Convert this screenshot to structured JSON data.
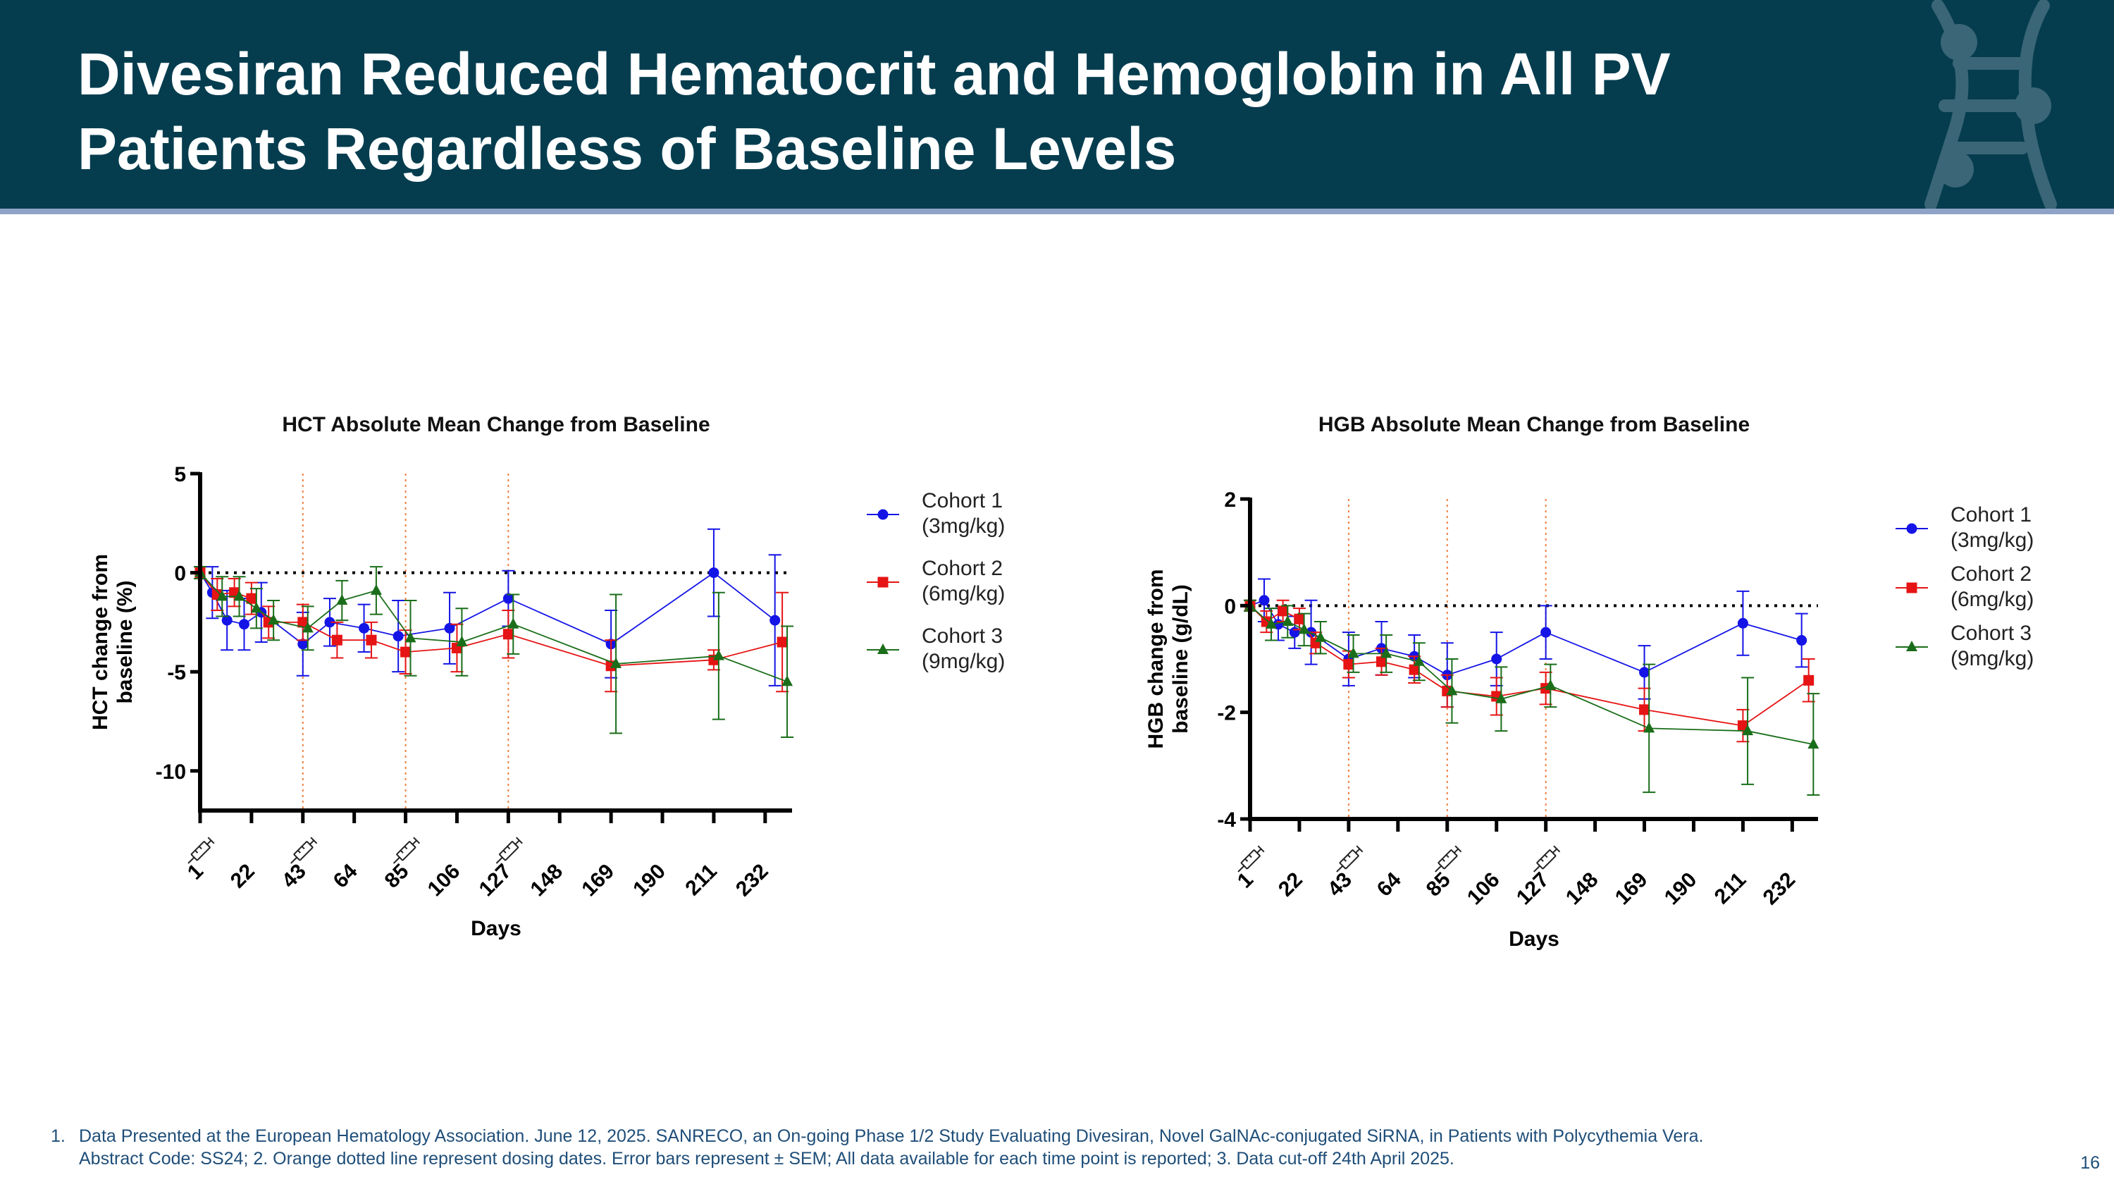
{
  "slide": {
    "title": "Divesiran Reduced Hematocrit and Hemoglobin in All PV Patients Regardless of Baseline Levels",
    "page_number": "16",
    "footnotes": [
      {
        "num": "1.",
        "text": "Data Presented at the European Hematology Association. June 12, 2025. SANRECO, an On-going Phase 1/2 Study Evaluating Divesiran, Novel GalNAc-conjugated SiRNA, in Patients with Polycythemia Vera."
      },
      {
        "num": "",
        "text": "Abstract Code: SS24; 2. Orange dotted line represent dosing dates. Error bars represent ± SEM; All data available for each time point is reported;  3. Data cut-off 24th April 2025."
      }
    ]
  },
  "colors": {
    "header_bg": "#053d4f",
    "stripe": "#8fa3c8",
    "cohort1": "#1414e6",
    "cohort2": "#e61414",
    "cohort3": "#1a6e1a",
    "dosing_line": "#f08040"
  },
  "chart_data": [
    {
      "type": "line",
      "title": "HCT Absolute Mean Change from Baseline",
      "xlabel": "Days",
      "ylabel": "HCT change from baseline (%)",
      "xlim": [
        1,
        243
      ],
      "ylim": [
        -12,
        5
      ],
      "yticks": [
        5,
        0,
        -5,
        -10
      ],
      "xticks": [
        1,
        22,
        43,
        64,
        85,
        106,
        127,
        148,
        169,
        190,
        211,
        232
      ],
      "dosing_days": [
        43,
        85,
        127
      ],
      "dose_icon_days": [
        1,
        43,
        85,
        127
      ],
      "reference_line": 0,
      "legend_position": "right",
      "series": [
        {
          "name": "Cohort 1\n(3mg/kg)",
          "marker": "circle",
          "color": "#1414e6",
          "x": [
            1,
            6,
            12,
            19,
            26,
            43,
            54,
            68,
            82,
            103,
            127,
            169,
            211,
            236
          ],
          "y": [
            0,
            -1,
            -2.4,
            -2.6,
            -2,
            -3.6,
            -2.5,
            -2.8,
            -3.2,
            -2.8,
            -1.3,
            -3.6,
            0,
            -2.4
          ],
          "err": [
            0.3,
            1.3,
            1.5,
            1.3,
            1.5,
            1.6,
            1.2,
            1.2,
            1.8,
            1.8,
            1.4,
            1.7,
            2.2,
            3.3
          ]
        },
        {
          "name": "Cohort 2\n(6mg/kg)",
          "marker": "square",
          "color": "#e61414",
          "x": [
            1,
            8,
            15,
            22,
            29,
            43,
            57,
            71,
            85,
            106,
            127,
            169,
            211,
            239
          ],
          "y": [
            0,
            -1.1,
            -1,
            -1.3,
            -2.5,
            -2.5,
            -3.4,
            -3.4,
            -4,
            -3.8,
            -3.1,
            -4.7,
            -4.4,
            -3.5
          ],
          "err": [
            0.3,
            0.8,
            0.7,
            0.8,
            0.8,
            0.9,
            0.9,
            0.9,
            1.1,
            1.2,
            1.2,
            1.3,
            0.5,
            2.5
          ]
        },
        {
          "name": "Cohort 3\n(9mg/kg)",
          "marker": "triangle",
          "color": "#1a6e1a",
          "x": [
            1,
            10,
            17,
            24,
            31,
            45,
            59,
            73,
            87,
            108,
            129,
            171,
            213,
            241
          ],
          "y": [
            0,
            -1.2,
            -1.2,
            -1.8,
            -2.4,
            -2.8,
            -1.4,
            -0.9,
            -3.3,
            -3.5,
            -2.6,
            -4.6,
            -4.2,
            -5.5
          ],
          "err": [
            0.3,
            1,
            1,
            1,
            1,
            1.1,
            1,
            1.2,
            1.9,
            1.7,
            1.5,
            3.5,
            3.2,
            2.8
          ]
        }
      ]
    },
    {
      "type": "line",
      "title": "HGB Absolute Mean Change from Baseline",
      "xlabel": "Days",
      "ylabel": "HGB change from baseline (g/dL)",
      "xlim": [
        1,
        243
      ],
      "ylim": [
        -4,
        2
      ],
      "yticks": [
        2,
        0,
        -2,
        -4
      ],
      "xticks": [
        1,
        22,
        43,
        64,
        85,
        106,
        127,
        148,
        169,
        190,
        211,
        232
      ],
      "dosing_days": [
        43,
        85,
        127
      ],
      "dose_icon_days": [
        1,
        43,
        85,
        127
      ],
      "reference_line": 0,
      "legend_position": "right",
      "series": [
        {
          "name": "Cohort 1\n(3mg/kg)",
          "marker": "circle",
          "color": "#1414e6",
          "x": [
            1,
            7,
            13,
            20,
            27,
            43,
            57,
            71,
            85,
            106,
            127,
            169,
            211,
            236
          ],
          "y": [
            0,
            0.1,
            -0.35,
            -0.5,
            -0.5,
            -1,
            -0.8,
            -0.95,
            -1.3,
            -1,
            -0.5,
            -1.25,
            -0.33,
            -0.65
          ],
          "err": [
            0.1,
            0.4,
            0.3,
            0.3,
            0.6,
            0.5,
            0.5,
            0.4,
            0.6,
            0.5,
            0.5,
            0.5,
            0.6,
            0.5
          ]
        },
        {
          "name": "Cohort 2\n(6mg/kg)",
          "marker": "square",
          "color": "#e61414",
          "x": [
            1,
            8,
            15,
            22,
            29,
            43,
            57,
            71,
            85,
            106,
            127,
            169,
            211,
            239
          ],
          "y": [
            0,
            -0.3,
            -0.1,
            -0.25,
            -0.7,
            -1.1,
            -1.05,
            -1.2,
            -1.6,
            -1.7,
            -1.55,
            -1.95,
            -2.25,
            -1.4
          ],
          "err": [
            0.1,
            0.2,
            0.2,
            0.2,
            0.2,
            0.25,
            0.25,
            0.25,
            0.3,
            0.35,
            0.3,
            0.4,
            0.3,
            0.4
          ]
        },
        {
          "name": "Cohort 3\n(9mg/kg)",
          "marker": "triangle",
          "color": "#1a6e1a",
          "x": [
            1,
            10,
            17,
            24,
            31,
            45,
            59,
            73,
            87,
            108,
            129,
            171,
            213,
            241
          ],
          "y": [
            0,
            -0.35,
            -0.3,
            -0.45,
            -0.6,
            -0.9,
            -0.9,
            -1.05,
            -1.6,
            -1.75,
            -1.5,
            -2.3,
            -2.35,
            -2.6
          ],
          "err": [
            0.1,
            0.3,
            0.3,
            0.3,
            0.3,
            0.35,
            0.35,
            0.35,
            0.6,
            0.6,
            0.4,
            1.2,
            1,
            0.95
          ]
        }
      ]
    }
  ]
}
